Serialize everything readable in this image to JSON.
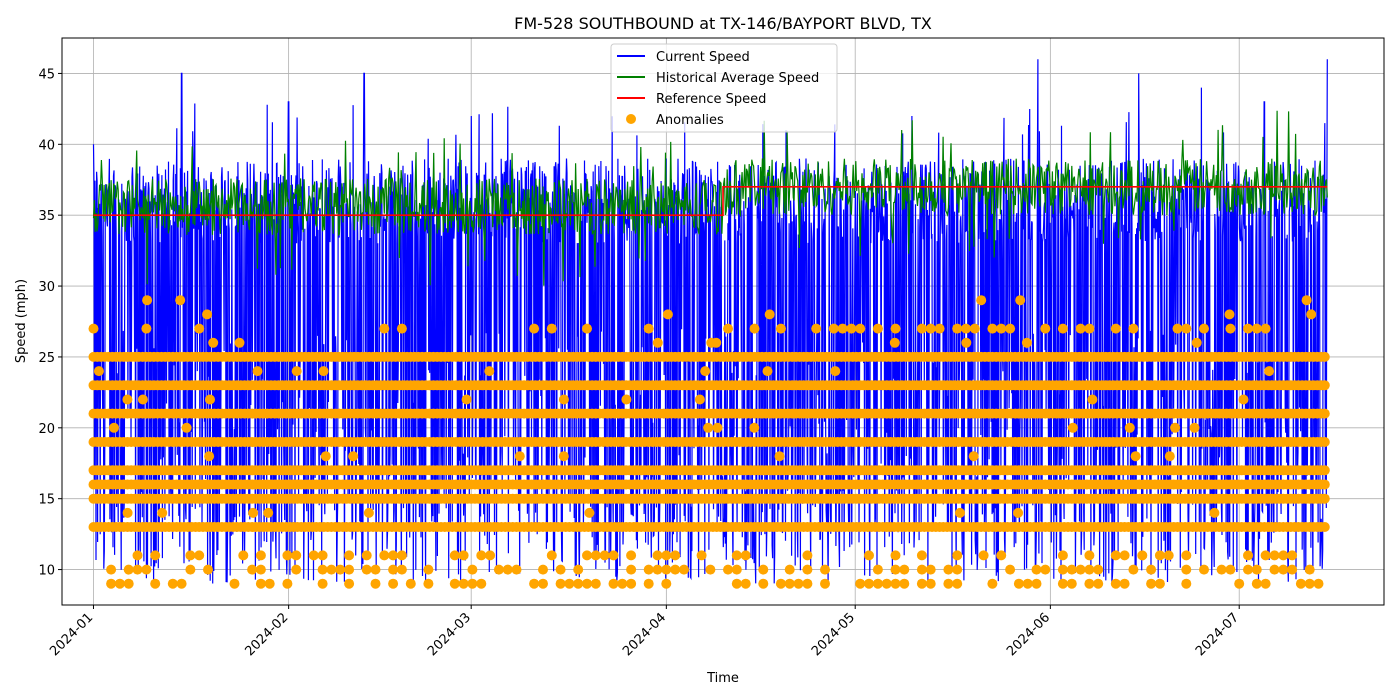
{
  "chart_data": {
    "type": "line",
    "title": "FM-528 SOUTHBOUND at TX-146/BAYPORT BLVD, TX",
    "xlabel": "Time",
    "ylabel": "Speed (mph)",
    "x_start": "2023-12-27",
    "x_end": "2024-07-24",
    "xticks": [
      "2024-01",
      "2024-02",
      "2024-03",
      "2024-04",
      "2024-05",
      "2024-06",
      "2024-07"
    ],
    "ylim": [
      7.5,
      47.5
    ],
    "yticks": [
      10,
      15,
      20,
      25,
      30,
      35,
      40,
      45
    ],
    "grid": true,
    "legend_position": "top-center",
    "data_start": "2024-01-01",
    "data_end": "2024-07-15",
    "series": [
      {
        "name": "Current Speed",
        "color": "#0000ff",
        "kind": "line",
        "summary": "dense time series ranging roughly 9-46 mph",
        "peaks": [
          [
            "2024-01-01",
            40
          ],
          [
            "2024-01-15",
            45
          ],
          [
            "2024-02-01",
            43
          ],
          [
            "2024-02-13",
            45
          ],
          [
            "2024-03-01",
            42
          ],
          [
            "2024-03-15",
            42
          ],
          [
            "2024-04-01",
            39
          ],
          [
            "2024-04-20",
            41
          ],
          [
            "2024-05-10",
            42
          ],
          [
            "2024-05-30",
            46
          ],
          [
            "2024-06-15",
            45
          ],
          [
            "2024-06-25",
            44
          ],
          [
            "2024-07-05",
            43
          ],
          [
            "2024-07-15",
            46
          ]
        ]
      },
      {
        "name": "Historical Average Speed",
        "color": "#008000",
        "kind": "line",
        "summary": "oscillates ~33-40 mph throughout",
        "typical_range": [
          33,
          39
        ]
      },
      {
        "name": "Reference Speed",
        "color": "#ff0000",
        "kind": "step",
        "points": [
          [
            "2024-01-01",
            35
          ],
          [
            "2024-04-10",
            35
          ],
          [
            "2024-04-10",
            37
          ],
          [
            "2024-07-15",
            37
          ]
        ]
      },
      {
        "name": "Anomalies",
        "color": "#ffa500",
        "kind": "scatter",
        "levels": [
          9,
          10,
          11,
          13,
          15,
          16,
          17,
          19,
          21,
          23,
          25,
          27
        ],
        "sparse_levels": [
          14,
          18,
          20,
          22,
          24,
          26,
          28,
          29
        ]
      }
    ]
  }
}
